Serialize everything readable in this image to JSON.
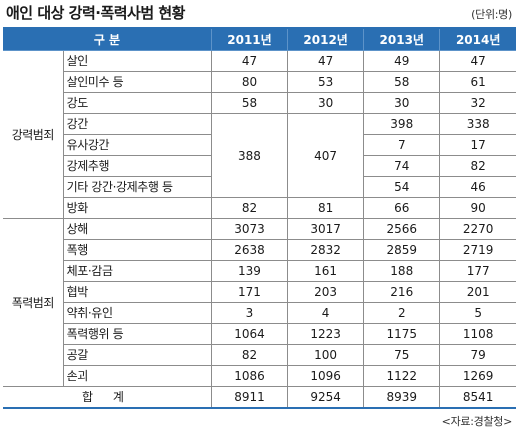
{
  "title": "애인 대상 강력·폭력사범 현황",
  "unit": "(단위:명)",
  "source": "<자료:경찰청>",
  "header": {
    "category_label": "구    분",
    "years": [
      "2011년",
      "2012년",
      "2013년",
      "2014년"
    ]
  },
  "groups": {
    "violent": "강력범죄",
    "assault": "폭력범죄"
  },
  "rows": {
    "murder": {
      "label": "살인",
      "values": [
        "47",
        "47",
        "49",
        "47"
      ]
    },
    "attempted_murder": {
      "label": "살인미수 등",
      "values": [
        "80",
        "53",
        "58",
        "61"
      ]
    },
    "robbery": {
      "label": "강도",
      "values": [
        "58",
        "30",
        "30",
        "32"
      ]
    },
    "rape": {
      "label": "강간",
      "values": [
        "398",
        "338"
      ]
    },
    "quasi_rape": {
      "label": "유사강간",
      "values": [
        "7",
        "17"
      ]
    },
    "forced_indecency": {
      "label": "강제추행",
      "values": [
        "74",
        "82"
      ]
    },
    "other_sex": {
      "label": "기타 강간·강제추행 등",
      "values": [
        "54",
        "46"
      ]
    },
    "sex_merged_2011_2012": [
      "388",
      "407"
    ],
    "arson": {
      "label": "방화",
      "values": [
        "82",
        "81",
        "66",
        "90"
      ]
    },
    "injury": {
      "label": "상해",
      "values": [
        "3073",
        "3017",
        "2566",
        "2270"
      ]
    },
    "assault": {
      "label": "폭행",
      "values": [
        "2638",
        "2832",
        "2859",
        "2719"
      ]
    },
    "confinement": {
      "label": "체포·감금",
      "values": [
        "139",
        "161",
        "188",
        "177"
      ]
    },
    "threat": {
      "label": "협박",
      "values": [
        "171",
        "203",
        "216",
        "201"
      ]
    },
    "kidnapping": {
      "label": "약취·유인",
      "values": [
        "3",
        "4",
        "2",
        "5"
      ]
    },
    "violence_etc": {
      "label": "폭력행위 등",
      "values": [
        "1064",
        "1223",
        "1175",
        "1108"
      ]
    },
    "extortion": {
      "label": "공갈",
      "values": [
        "82",
        "100",
        "75",
        "79"
      ]
    },
    "damage": {
      "label": "손괴",
      "values": [
        "1086",
        "1096",
        "1122",
        "1269"
      ]
    }
  },
  "total": {
    "label": "합  계",
    "values": [
      "8911",
      "9254",
      "8939",
      "8541"
    ]
  },
  "colors": {
    "header_bg": "#2a6fb3",
    "header_text": "#ffffff",
    "rule": "#2a6fb3"
  }
}
